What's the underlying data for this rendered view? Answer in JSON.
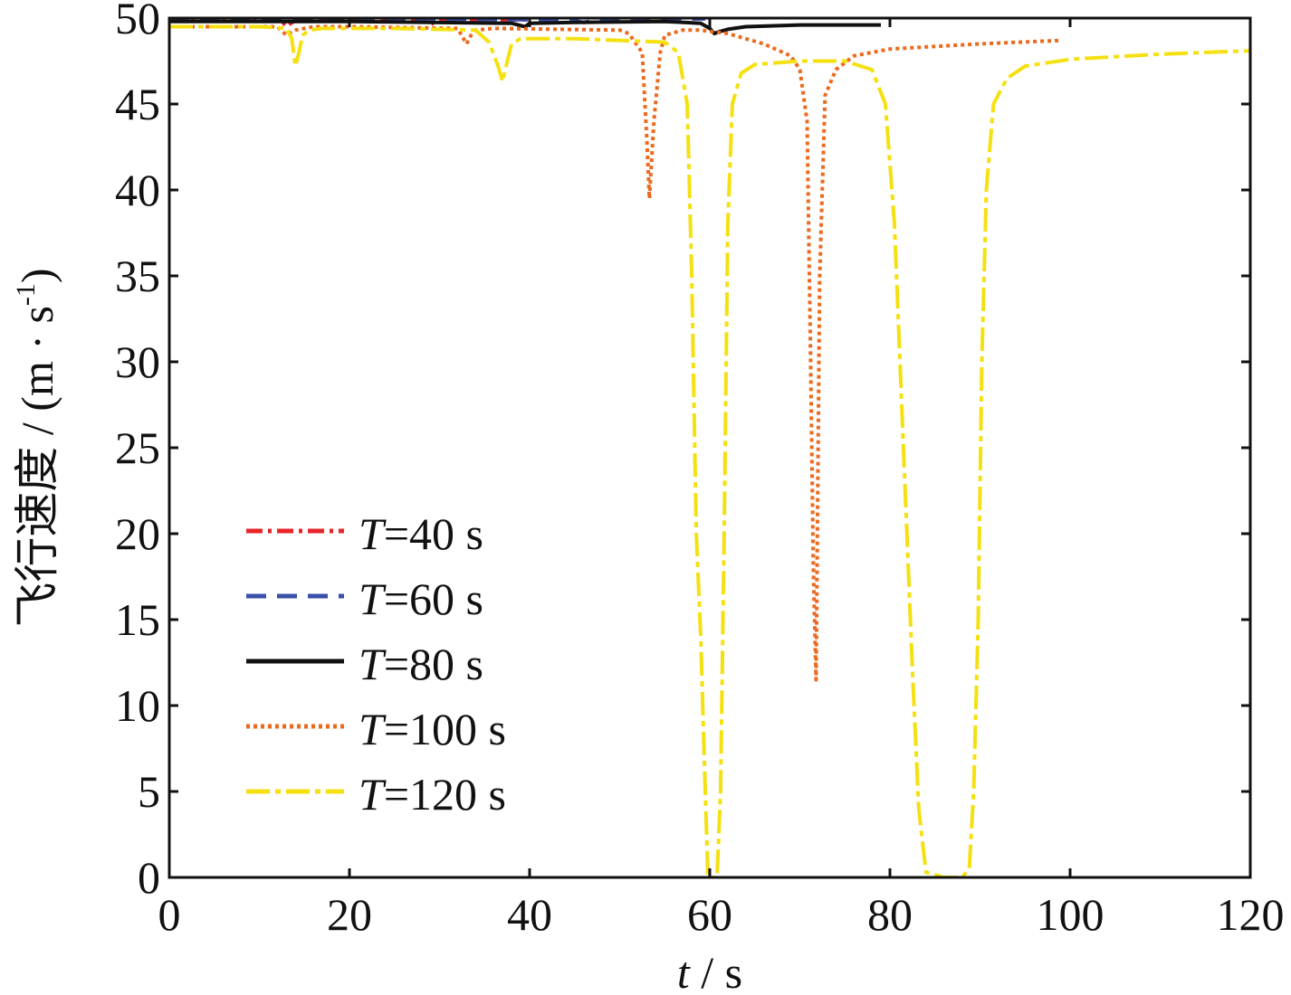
{
  "chart_data": {
    "type": "line",
    "xlabel": {
      "var": "t",
      "unit": "s"
    },
    "ylabel": {
      "text": "飞行速度 / (m · s",
      "sup": "-1",
      "close": ")"
    },
    "xlim": [
      0,
      120
    ],
    "ylim": [
      0,
      50
    ],
    "xticks": [
      "0",
      "20",
      "40",
      "60",
      "80",
      "100",
      "120"
    ],
    "yticks": [
      "0",
      "5",
      "10",
      "15",
      "20",
      "25",
      "30",
      "35",
      "40",
      "45",
      "50"
    ],
    "legend_position": "lower-left",
    "series": [
      {
        "name_var": "T",
        "name_rest": "=40 s",
        "color": "#e8262a",
        "dash": "18 6 4 6",
        "x": [
          0,
          12,
          12.5,
          13,
          13.5,
          14,
          15,
          20,
          27,
          28.5,
          29,
          29.5,
          30,
          35,
          39.8
        ],
        "y": [
          49.9,
          49.9,
          49.8,
          49.5,
          49.7,
          49.85,
          49.9,
          49.9,
          49.9,
          49.8,
          49.6,
          49.8,
          49.9,
          49.9,
          49.9
        ]
      },
      {
        "name_var": "T",
        "name_rest": "=60 s",
        "color": "#3a4fa8",
        "dash": "22 12",
        "x": [
          0,
          20,
          30,
          40,
          45,
          46,
          47,
          50,
          55,
          59.5
        ],
        "y": [
          49.95,
          49.95,
          49.95,
          49.9,
          49.85,
          49.75,
          49.85,
          49.9,
          49.95,
          49.95
        ]
      },
      {
        "name_var": "T",
        "name_rest": "=80 s",
        "color": "#111111",
        "dash": "",
        "x": [
          0,
          20,
          38,
          39.5,
          40,
          45,
          55,
          59,
          60,
          60.5,
          61,
          62,
          64,
          70,
          79
        ],
        "y": [
          49.8,
          49.8,
          49.7,
          49.5,
          49.7,
          49.75,
          49.8,
          49.7,
          49.4,
          49.1,
          49.2,
          49.35,
          49.5,
          49.6,
          49.6
        ]
      },
      {
        "name_var": "T",
        "name_rest": "=100 s",
        "color": "#ec6a1f",
        "dash": "4 4",
        "x": [
          0,
          12,
          13,
          14,
          16,
          20,
          32,
          33,
          33.5,
          34,
          36,
          50,
          51,
          52.5,
          53,
          53.3,
          53.8,
          54.5,
          55,
          57,
          59,
          62,
          66,
          69,
          70,
          70.8,
          71.2,
          71.5,
          71.8,
          72.2,
          72.8,
          74,
          76,
          80,
          90,
          99
        ],
        "y": [
          49.5,
          49.5,
          49.0,
          49.3,
          49.5,
          49.5,
          49.4,
          48.5,
          49.0,
          49.3,
          49.4,
          49.3,
          49.1,
          48.0,
          43.0,
          39.5,
          44.0,
          48.0,
          49.0,
          49.3,
          49.3,
          49.1,
          48.5,
          47.8,
          47.0,
          44.0,
          30.0,
          18.0,
          11.5,
          35.0,
          45.5,
          47.0,
          47.8,
          48.2,
          48.5,
          48.7
        ]
      },
      {
        "name_var": "T",
        "name_rest": "=120 s",
        "color": "#f5e010",
        "dash": "26 6 6 6",
        "x": [
          0,
          10,
          13,
          13.6,
          14,
          14.3,
          14.8,
          15.5,
          17,
          25,
          34,
          35.5,
          36.5,
          37,
          37.3,
          38,
          39,
          45,
          55,
          56.5,
          57.5,
          58,
          58.5,
          59,
          59.5,
          59.8,
          60.2,
          60.8,
          61.2,
          61.6,
          62,
          62.5,
          63.5,
          65,
          70,
          75,
          78,
          79.5,
          80.5,
          81.5,
          82.5,
          83.2,
          84,
          86,
          88,
          88.8,
          89.3,
          89.8,
          90.2,
          90.7,
          91.5,
          93,
          95,
          100,
          110,
          120
        ],
        "y": [
          49.5,
          49.5,
          49.4,
          48.8,
          47.2,
          47.8,
          49.0,
          49.3,
          49.4,
          49.4,
          49.3,
          48.6,
          47.2,
          46.3,
          47.0,
          48.5,
          48.8,
          48.8,
          48.6,
          48.0,
          45.0,
          35.0,
          20.0,
          14.0,
          5.0,
          0.0,
          0.0,
          0.0,
          5.0,
          20.0,
          38.0,
          45.0,
          46.8,
          47.3,
          47.5,
          47.5,
          47.0,
          45.0,
          38.0,
          25.0,
          12.0,
          4.0,
          0.3,
          0.0,
          0.0,
          0.5,
          5.0,
          15.0,
          30.0,
          40.0,
          45.0,
          46.5,
          47.2,
          47.6,
          47.9,
          48.1
        ]
      }
    ]
  }
}
